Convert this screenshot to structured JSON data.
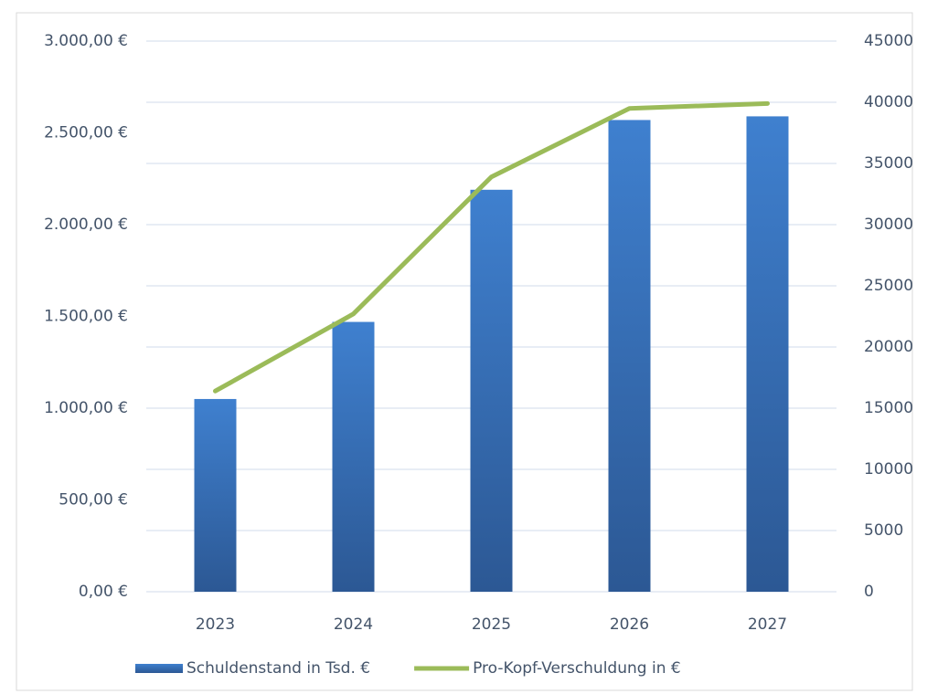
{
  "chart_data": {
    "type": "bar",
    "categories": [
      "2023",
      "2024",
      "2025",
      "2026",
      "2027"
    ],
    "series": [
      {
        "name": "Schuldenstand in Tsd. €",
        "type": "bar",
        "color": "#3a78c4",
        "values": [
          1050,
          1470,
          2190,
          2570,
          2590
        ]
      },
      {
        "name": "Pro-Kopf-Verschuldung in €",
        "type": "line",
        "axis": "y2",
        "color": "#9bbb59",
        "values": [
          16400,
          22700,
          33900,
          39500,
          39900
        ]
      }
    ],
    "ylim": [
      0,
      3000
    ],
    "yticks": [
      {
        "value": 0,
        "label": "0,00 €"
      },
      {
        "value": 500,
        "label": "500,00 €"
      },
      {
        "value": 1000,
        "label": "1.000,00 €"
      },
      {
        "value": 1500,
        "label": "1.500,00 €"
      },
      {
        "value": 2000,
        "label": "2.000,00 €"
      },
      {
        "value": 2500,
        "label": "2.500,00 €"
      },
      {
        "value": 3000,
        "label": "3.000,00 €"
      }
    ],
    "y2lim": [
      0,
      45000
    ],
    "y2ticks": [
      0,
      5000,
      10000,
      15000,
      20000,
      25000,
      30000,
      35000,
      40000,
      45000
    ],
    "grid": true,
    "legend": "bottom"
  }
}
